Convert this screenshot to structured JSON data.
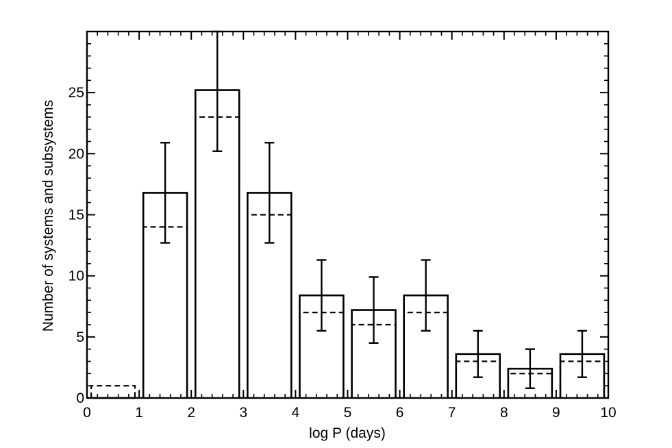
{
  "chart_data": {
    "type": "bar",
    "title": "",
    "xlabel": "log P (days)",
    "ylabel": "Number of systems and subsystems",
    "xlim": [
      0,
      10
    ],
    "ylim": [
      0,
      30
    ],
    "grid": false,
    "x_ticks": [
      "0",
      "1",
      "2",
      "3",
      "4",
      "5",
      "6",
      "7",
      "8",
      "9",
      "10"
    ],
    "y_ticks": [
      "0",
      "5",
      "10",
      "15",
      "20",
      "25"
    ],
    "bins": [
      [
        0,
        1
      ],
      [
        1,
        2
      ],
      [
        2,
        3
      ],
      [
        3,
        4
      ],
      [
        4,
        5
      ],
      [
        5,
        6
      ],
      [
        6,
        7
      ],
      [
        7,
        8
      ],
      [
        8,
        9
      ],
      [
        9,
        10
      ]
    ],
    "series": [
      {
        "style": "solid",
        "values": [
          0,
          16.8,
          25.2,
          16.8,
          8.4,
          7.2,
          8.4,
          3.6,
          2.4,
          3.6
        ],
        "error_low": [
          null,
          12.7,
          20.2,
          12.7,
          5.5,
          4.5,
          5.5,
          1.7,
          0.8,
          1.7
        ],
        "error_high": [
          null,
          20.9,
          30.0,
          20.9,
          11.3,
          9.9,
          11.3,
          5.5,
          4.0,
          5.5
        ]
      },
      {
        "style": "dashed",
        "values": [
          1,
          14,
          23,
          15,
          7,
          6,
          7,
          3,
          2,
          3
        ]
      }
    ],
    "colors": {
      "line": "#000000",
      "background": "#ffffff"
    }
  }
}
